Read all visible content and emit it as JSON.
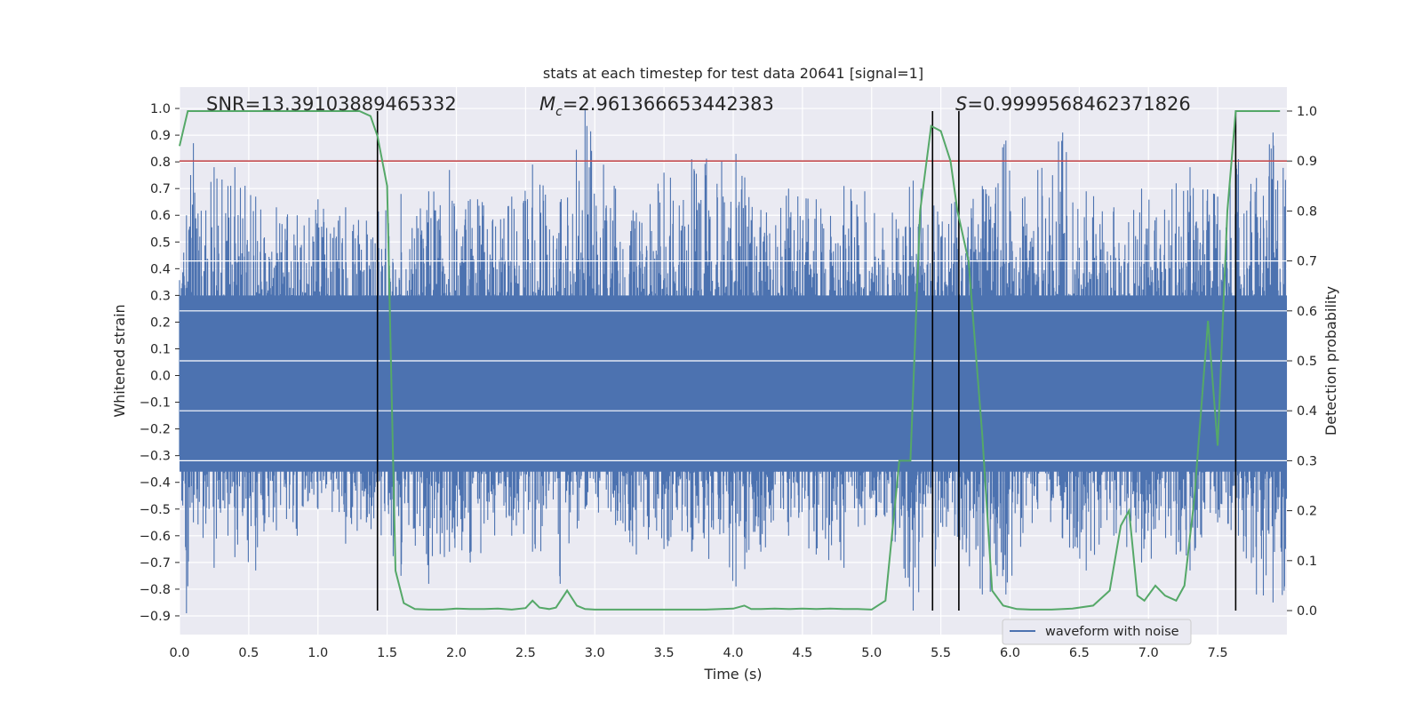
{
  "chart_data": {
    "type": "line",
    "title": "stats at each timestep for test data 20641 [signal=1]",
    "xlabel": "Time (s)",
    "ylabel": "Whitened strain",
    "y2label": "Detection probability",
    "xlim": [
      0.0,
      8.0
    ],
    "ylim": [
      -0.97,
      1.08
    ],
    "y2lim": [
      -0.048,
      1.048
    ],
    "x_ticks": [
      "0.0",
      "0.5",
      "1.0",
      "1.5",
      "2.0",
      "2.5",
      "3.0",
      "3.5",
      "4.0",
      "4.5",
      "5.0",
      "5.5",
      "6.0",
      "6.5",
      "7.0",
      "7.5"
    ],
    "y_ticks": [
      "1.0",
      "0.9",
      "0.8",
      "0.7",
      "0.6",
      "0.5",
      "0.4",
      "0.3",
      "0.2",
      "0.1",
      "0.0",
      "-0.1",
      "-0.2",
      "-0.3",
      "-0.4",
      "-0.5",
      "-0.6",
      "-0.7",
      "-0.8",
      "-0.9"
    ],
    "y2_ticks": [
      "1.0",
      "0.9",
      "0.8",
      "0.7",
      "0.6",
      "0.5",
      "0.4",
      "0.3",
      "0.2",
      "0.1",
      "0.0"
    ],
    "grid": true,
    "legend_position": "lower-right",
    "annotations": {
      "snr": "SNR=13.39103889465332",
      "mc_symbol": "M",
      "mc_sub": "c",
      "mc_value": "=2.961366653442383",
      "s_symbol": "S",
      "s_value": "=0.9999568462371826"
    },
    "colors": {
      "waveform": "#4c72b0",
      "probability": "#55a868",
      "threshold": "#c44e52",
      "boundary": "#000000",
      "background": "#eaeaf2",
      "grid": "#ffffff"
    },
    "series": [
      {
        "name": "waveform with noise",
        "axis": "left",
        "envelope_note": "dense noise trace",
        "peaks_x": [
          0.05,
          0.1,
          0.25,
          0.35,
          0.4,
          0.55,
          0.7,
          0.85,
          1.0,
          1.2,
          1.35,
          1.6,
          1.8,
          1.95,
          2.1,
          2.4,
          2.55,
          2.75,
          2.93,
          3.15,
          3.3,
          3.5,
          3.7,
          4.02,
          4.2,
          4.4,
          4.6,
          4.8,
          4.95,
          5.15,
          5.3,
          5.6,
          5.8,
          5.97,
          6.2,
          6.38,
          6.55,
          6.75,
          6.95,
          7.2,
          7.3,
          7.5,
          7.65,
          7.78,
          7.9
        ],
        "peaks_y": [
          0.6,
          0.87,
          0.78,
          0.71,
          0.78,
          0.67,
          0.63,
          0.6,
          0.66,
          0.63,
          0.58,
          0.68,
          0.69,
          0.77,
          0.66,
          0.67,
          0.79,
          0.65,
          1.0,
          0.7,
          0.61,
          0.76,
          0.81,
          0.83,
          0.62,
          0.7,
          0.66,
          0.71,
          0.69,
          0.61,
          0.73,
          0.65,
          0.71,
          0.88,
          0.77,
          0.91,
          0.69,
          0.63,
          0.7,
          0.72,
          0.78,
          0.67,
          0.81,
          0.74,
          0.91
        ],
        "troughs_y": [
          -0.89,
          -0.55,
          -0.72,
          -0.6,
          -0.68,
          -0.73,
          -0.58,
          -0.6,
          -0.5,
          -0.63,
          -0.55,
          -0.75,
          -0.78,
          -0.66,
          -0.7,
          -0.6,
          -0.66,
          -0.78,
          -0.5,
          -0.56,
          -0.67,
          -0.65,
          -0.66,
          -0.79,
          -0.66,
          -0.6,
          -0.67,
          -0.72,
          -0.56,
          -0.62,
          -0.88,
          -0.6,
          -0.82,
          -0.82,
          -0.5,
          -0.61,
          -0.73,
          -0.6,
          -0.7,
          -0.67,
          -0.73,
          -0.55,
          -0.6,
          -0.82,
          -0.85
        ]
      },
      {
        "name": "detection probability",
        "axis": "right",
        "x": [
          0.0,
          0.06,
          0.13,
          0.2,
          0.3,
          0.4,
          0.5,
          0.6,
          0.7,
          0.8,
          0.9,
          1.0,
          1.1,
          1.2,
          1.3,
          1.38,
          1.43,
          1.5,
          1.56,
          1.62,
          1.7,
          1.8,
          1.9,
          2.0,
          2.1,
          2.2,
          2.3,
          2.4,
          2.5,
          2.55,
          2.6,
          2.67,
          2.72,
          2.8,
          2.87,
          2.93,
          3.0,
          3.2,
          3.4,
          3.6,
          3.8,
          4.0,
          4.08,
          4.13,
          4.2,
          4.3,
          4.4,
          4.5,
          4.6,
          4.7,
          4.8,
          4.9,
          5.0,
          5.1,
          5.2,
          5.28,
          5.35,
          5.43,
          5.5,
          5.57,
          5.62,
          5.7,
          5.8,
          5.87,
          5.95,
          6.05,
          6.15,
          6.3,
          6.45,
          6.6,
          6.72,
          6.8,
          6.86,
          6.92,
          6.97,
          7.05,
          7.12,
          7.2,
          7.26,
          7.33,
          7.43,
          7.5,
          7.57,
          7.63,
          7.7,
          7.76,
          7.85,
          7.95
        ],
        "y": [
          0.93,
          1.0,
          1.0,
          1.0,
          1.0,
          1.0,
          1.0,
          1.0,
          1.0,
          1.0,
          1.0,
          1.0,
          1.0,
          1.0,
          1.0,
          0.99,
          0.95,
          0.85,
          0.08,
          0.015,
          0.003,
          0.002,
          0.002,
          0.004,
          0.003,
          0.003,
          0.004,
          0.002,
          0.005,
          0.02,
          0.006,
          0.003,
          0.006,
          0.04,
          0.01,
          0.003,
          0.002,
          0.002,
          0.002,
          0.002,
          0.002,
          0.004,
          0.01,
          0.003,
          0.003,
          0.004,
          0.003,
          0.004,
          0.003,
          0.004,
          0.003,
          0.003,
          0.002,
          0.02,
          0.3,
          0.3,
          0.8,
          0.97,
          0.96,
          0.9,
          0.8,
          0.7,
          0.35,
          0.04,
          0.01,
          0.003,
          0.002,
          0.002,
          0.004,
          0.01,
          0.04,
          0.17,
          0.2,
          0.03,
          0.02,
          0.05,
          0.03,
          0.02,
          0.05,
          0.22,
          0.58,
          0.33,
          0.8,
          1.0,
          1.0,
          1.0,
          1.0,
          1.0
        ]
      }
    ],
    "threshold_right": 0.9,
    "boundaries_x": [
      1.43,
      5.44,
      5.63,
      7.63
    ],
    "legend": [
      "waveform with noise"
    ]
  }
}
